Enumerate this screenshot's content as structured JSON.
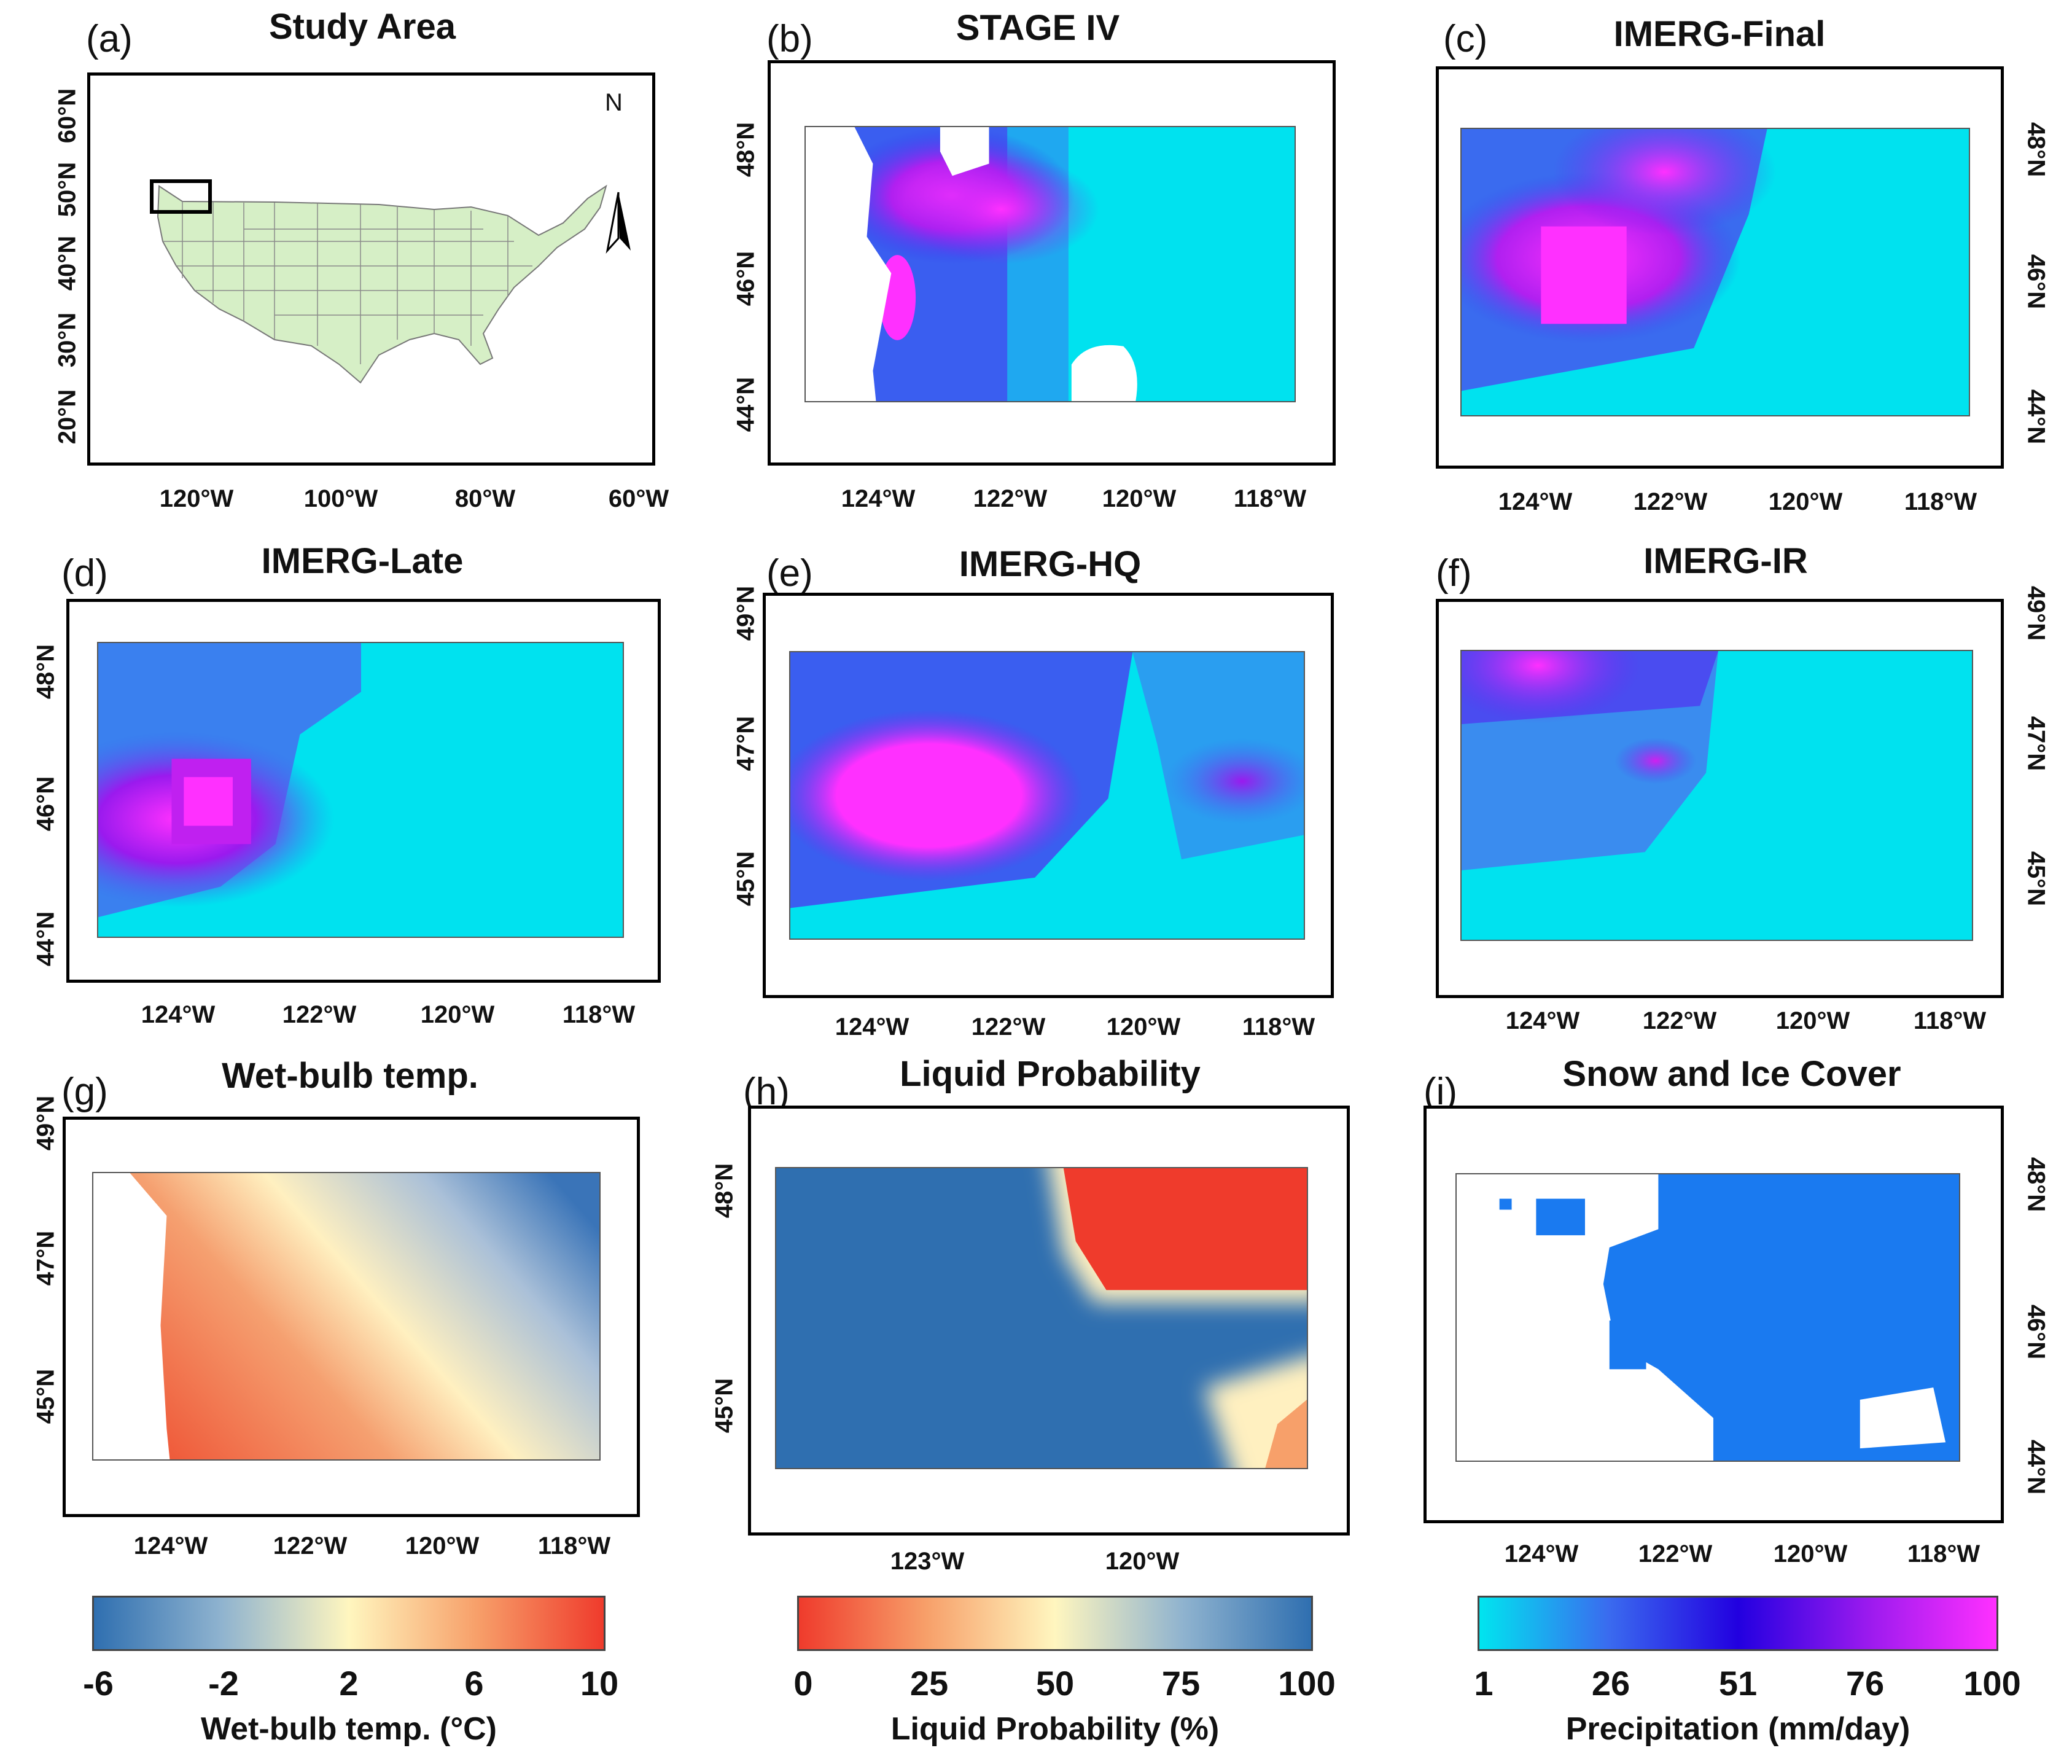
{
  "panels": {
    "a": {
      "label": "(a)",
      "title": "Study Area",
      "x_ticks": [
        "120°W",
        "100°W",
        "80°W",
        "60°W"
      ],
      "y_ticks": [
        "60°N",
        "50°N",
        "40°N",
        "30°N",
        "20°N"
      ],
      "north": "N"
    },
    "b": {
      "label": "(b)",
      "title": "STAGE IV",
      "x_ticks": [
        "124°W",
        "122°W",
        "120°W",
        "118°W"
      ],
      "y_ticks": [
        "48°N",
        "46°N",
        "44°N"
      ]
    },
    "c": {
      "label": "(c)",
      "title": "IMERG-Final",
      "x_ticks": [
        "124°W",
        "122°W",
        "120°W",
        "118°W"
      ],
      "y_ticks": [
        "48°N",
        "46°N",
        "44°N"
      ]
    },
    "d": {
      "label": "(d)",
      "title": "IMERG-Late",
      "x_ticks": [
        "124°W",
        "122°W",
        "120°W",
        "118°W"
      ],
      "y_ticks": [
        "48°N",
        "46°N",
        "44°N"
      ]
    },
    "e": {
      "label": "(e)",
      "title": "IMERG-HQ",
      "x_ticks": [
        "124°W",
        "122°W",
        "120°W",
        "118°W"
      ],
      "y_ticks": [
        "49°N",
        "47°N",
        "45°N"
      ]
    },
    "f": {
      "label": "(f)",
      "title": "IMERG-IR",
      "x_ticks": [
        "124°W",
        "122°W",
        "120°W",
        "118°W"
      ],
      "y_ticks": [
        "49°N",
        "47°N",
        "45°N"
      ]
    },
    "g": {
      "label": "(g)",
      "title": "Wet-bulb temp.",
      "x_ticks": [
        "124°W",
        "122°W",
        "120°W",
        "118°W"
      ],
      "y_ticks": [
        "49°N",
        "47°N",
        "45°N"
      ]
    },
    "h": {
      "label": "(h)",
      "title": "Liquid Probability",
      "x_ticks": [
        "123°W",
        "120°W"
      ],
      "y_ticks": [
        "48°N",
        "45°N"
      ]
    },
    "i": {
      "label": "(i)",
      "title": "Snow and Ice Cover",
      "x_ticks": [
        "124°W",
        "122°W",
        "120°W",
        "118°W"
      ],
      "y_ticks": [
        "48°N",
        "46°N",
        "44°N"
      ]
    }
  },
  "colorbars": {
    "wetbulb": {
      "title": "Wet-bulb temp. (°C)",
      "ticks": [
        "-6",
        "-2",
        "2",
        "6",
        "10"
      ],
      "colors": [
        "#2f6fb0",
        "#8fb3cf",
        "#fff6bf",
        "#f7a06a",
        "#ef3b2c"
      ]
    },
    "liquid": {
      "title": "Liquid Probability (%)",
      "ticks": [
        "0",
        "25",
        "50",
        "75",
        "100"
      ],
      "colors": [
        "#ef3b2c",
        "#f7a06a",
        "#fff6bf",
        "#8fb3cf",
        "#2f6fb0"
      ]
    },
    "precip": {
      "title": "Precipitation (mm/day)",
      "ticks": [
        "1",
        "26",
        "51",
        "76",
        "100"
      ],
      "colors": [
        "#00e5ef",
        "#3a6bef",
        "#2200e0",
        "#9a1aee",
        "#ff30ff"
      ]
    }
  }
}
